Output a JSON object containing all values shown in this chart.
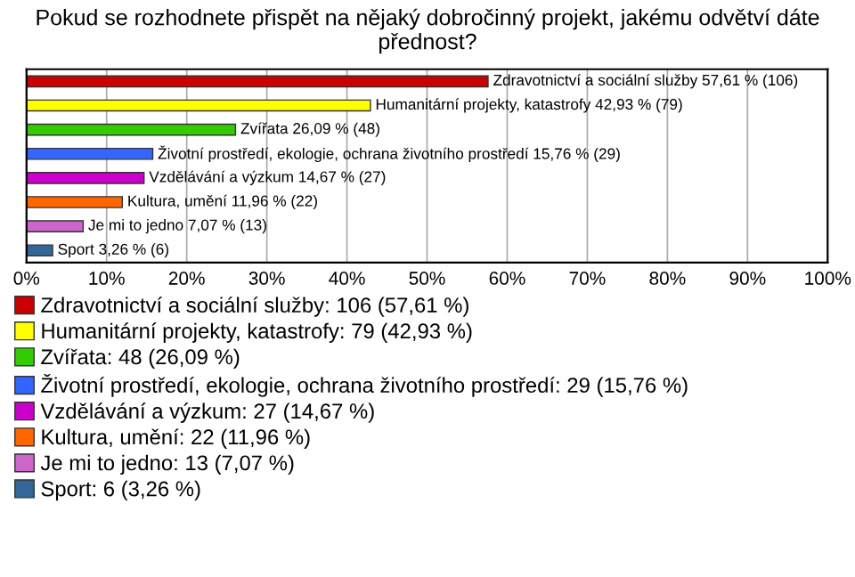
{
  "chart_data": {
    "type": "bar",
    "orientation": "horizontal",
    "title": "Pokud se rozhodnete přispět na nějaký dobročinný projekt, jakému odvětví dáte přednost?",
    "categories": [
      null,
      null,
      null,
      null,
      null,
      null,
      null,
      null
    ],
    "series": [
      {
        "name": "Zdravotnictví a sociální služby: 106 (57,61 %)",
        "color": "#cc0000",
        "values": [
          57.61,
          null,
          null,
          null,
          null,
          null,
          null,
          null
        ],
        "value_labels": [
          "Zdravotnictví a sociální služby 57,61 % (106)",
          null,
          null,
          null,
          null,
          null,
          null,
          null
        ]
      },
      {
        "name": "Humanitární projekty, katastrofy: 79 (42,93 %)",
        "color": "#ffff00",
        "values": [
          null,
          42.93,
          null,
          null,
          null,
          null,
          null,
          null
        ],
        "value_labels": [
          null,
          "Humanitární projekty, katastrofy 42,93 % (79)",
          null,
          null,
          null,
          null,
          null,
          null
        ]
      },
      {
        "name": "Zvířata: 48 (26,09 %)",
        "color": "#33cc00",
        "values": [
          null,
          null,
          26.09,
          null,
          null,
          null,
          null,
          null
        ],
        "value_labels": [
          null,
          null,
          "Zvířata 26,09 % (48)",
          null,
          null,
          null,
          null,
          null
        ]
      },
      {
        "name": "Životní prostředí, ekologie, ochrana životního prostředí: 29 (15,76 %)",
        "color": "#3366ff",
        "values": [
          null,
          null,
          null,
          15.76,
          null,
          null,
          null,
          null
        ],
        "value_labels": [
          null,
          null,
          null,
          "Životní prostředí, ekologie, ochrana životního prostředí 15,76 % (29)",
          null,
          null,
          null,
          null
        ]
      },
      {
        "name": "Vzdělávání a výzkum: 27 (14,67 %)",
        "color": "#cc00cc",
        "values": [
          null,
          null,
          null,
          null,
          14.67,
          null,
          null,
          null
        ],
        "value_labels": [
          null,
          null,
          null,
          null,
          "Vzdělávání a výzkum 14,67 % (27)",
          null,
          null,
          null
        ]
      },
      {
        "name": "Kultura, umění: 22 (11,96 %)",
        "color": "#ff6600",
        "values": [
          null,
          null,
          null,
          null,
          null,
          11.96,
          null,
          null
        ],
        "value_labels": [
          null,
          null,
          null,
          null,
          null,
          "Kultura, umění 11,96 % (22)",
          null,
          null
        ]
      },
      {
        "name": "Je mi to jedno: 13 (7,07 %)",
        "color": "#cc66cc",
        "values": [
          null,
          null,
          null,
          null,
          null,
          null,
          7.07,
          null
        ],
        "value_labels": [
          null,
          null,
          null,
          null,
          null,
          null,
          "Je mi to jedno 7,07 % (13)",
          null
        ]
      },
      {
        "name": "Sport: 6 (3,26 %)",
        "color": "#336699",
        "values": [
          null,
          null,
          null,
          null,
          null,
          null,
          null,
          3.26
        ],
        "value_labels": [
          null,
          null,
          null,
          null,
          null,
          null,
          null,
          "Sport 3,26 % (6)"
        ]
      }
    ],
    "xlim": [
      0,
      100
    ],
    "xticks": [
      {
        "value": 0,
        "label": "0%"
      },
      {
        "value": 10,
        "label": "10%"
      },
      {
        "value": 20,
        "label": "20%"
      },
      {
        "value": 30,
        "label": "30%"
      },
      {
        "value": 40,
        "label": "40%"
      },
      {
        "value": 50,
        "label": "50%"
      },
      {
        "value": 60,
        "label": "60%"
      },
      {
        "value": 70,
        "label": "70%"
      },
      {
        "value": 80,
        "label": "80%"
      },
      {
        "value": 90,
        "label": "90%"
      },
      {
        "value": 100,
        "label": "100%"
      }
    ],
    "grid": "x",
    "legend": "bottom",
    "tick_labels": "x"
  }
}
